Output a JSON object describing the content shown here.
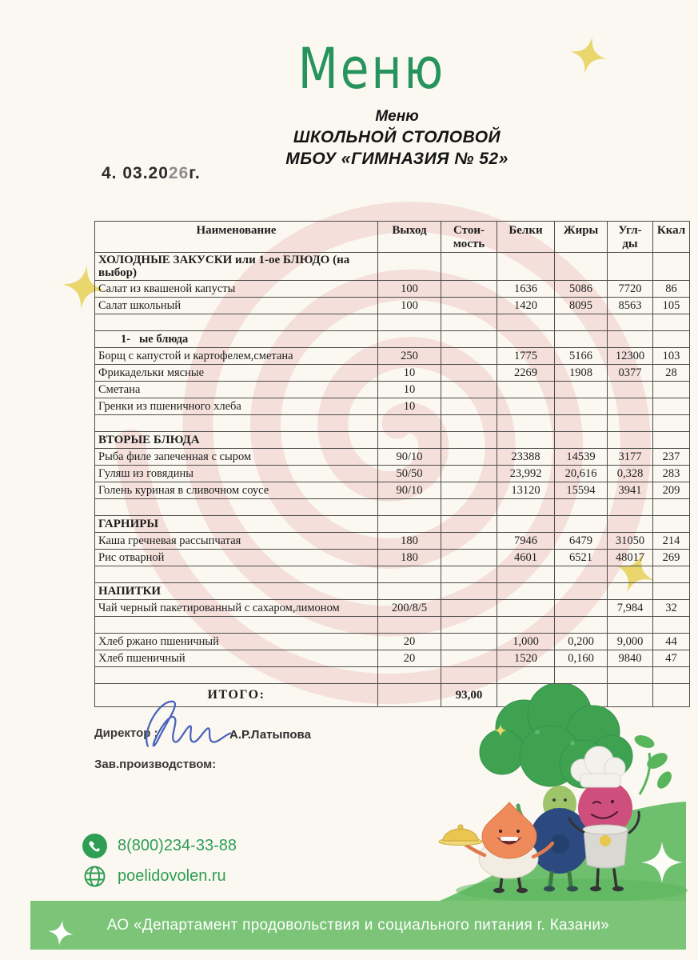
{
  "colors": {
    "page_bg": "#fbf8f1",
    "accent_green": "#27945d",
    "footer_green": "#7bc478",
    "hill_green": "#6fc06e",
    "contact_green": "#2f9e55",
    "watermark_pink": "#f3dbd7",
    "sparkle_yellow": "#e9d76d",
    "signature_blue": "#4a63bb",
    "text_dark": "#262626"
  },
  "header": {
    "script_title": "Меню",
    "subtitle_lines": [
      "Меню",
      "ШКОЛЬНОЙ СТОЛОВОЙ",
      "МБОУ «ГИМНАЗИЯ № 52»"
    ],
    "date_prefix": "4. 03.20",
    "date_year": "26",
    "date_suffix": "г."
  },
  "table": {
    "headers": [
      "Наименование",
      "Выход",
      "Стои-\nмость",
      "Белки",
      "Жиры",
      "Угл-\nды",
      "Ккал"
    ],
    "rows": [
      {
        "t": "section",
        "name": "ХОЛОДНЫЕ ЗАКУСКИ или 1-ое БЛЮДО (на выбор)"
      },
      {
        "t": "item",
        "name": "Салат из квашеной капусты",
        "out": "100",
        "pr": "1636",
        "fat": "5086",
        "carb": "7720",
        "kcal": "86"
      },
      {
        "t": "item",
        "name": "Салат школьный",
        "out": "100",
        "pr": "1420",
        "fat": "8095",
        "carb": "8563",
        "kcal": "105"
      },
      {
        "t": "empty"
      },
      {
        "t": "section-indent",
        "name": "1-   ые блюда"
      },
      {
        "t": "item",
        "name": "Борщ с капустой и картофелем,сметана",
        "out": "250",
        "pr": "1775",
        "fat": "5166",
        "carb": "12300",
        "kcal": "103"
      },
      {
        "t": "item",
        "name": "Фрикадельки мясные",
        "out": "10",
        "pr": "2269",
        "fat": "1908",
        "carb": "0377",
        "kcal": "28"
      },
      {
        "t": "item",
        "name": "Сметана",
        "out": "10"
      },
      {
        "t": "item",
        "name": "Гренки из пшеничного хлеба",
        "out": "10"
      },
      {
        "t": "empty"
      },
      {
        "t": "section",
        "name": "ВТОРЫЕ БЛЮДА"
      },
      {
        "t": "item",
        "name": "Рыба филе запеченная с сыром",
        "out": "90/10",
        "pr": "23388",
        "fat": "14539",
        "carb": "3177",
        "kcal": "237"
      },
      {
        "t": "item",
        "name": "Гуляш из говядины",
        "out": "50/50",
        "pr": "23,992",
        "fat": "20,616",
        "carb": "0,328",
        "kcal": "283"
      },
      {
        "t": "item",
        "name": "Голень куриная в сливочном соусе",
        "out": "90/10",
        "pr": "13120",
        "fat": "15594",
        "carb": "3941",
        "kcal": "209"
      },
      {
        "t": "empty"
      },
      {
        "t": "section",
        "name": "ГАРНИРЫ"
      },
      {
        "t": "item",
        "name": "Каша гречневая рассыпчатая",
        "out": "180",
        "pr": "7946",
        "fat": "6479",
        "carb": "31050",
        "kcal": "214"
      },
      {
        "t": "item",
        "name": "Рис отварной",
        "out": "180",
        "pr": "4601",
        "fat": "6521",
        "carb": "48017",
        "kcal": "269"
      },
      {
        "t": "empty"
      },
      {
        "t": "section",
        "name": "НАПИТКИ"
      },
      {
        "t": "item",
        "name": "Чай черный пакетированный с сахаром,лимоном",
        "out": "200/8/5",
        "carb": "7,984",
        "kcal": "32"
      },
      {
        "t": "empty"
      },
      {
        "t": "item",
        "name": "Хлеб ржано пшеничный",
        "out": "20",
        "pr": "1,000",
        "fat": "0,200",
        "carb": "9,000",
        "kcal": "44"
      },
      {
        "t": "item",
        "name": "Хлеб пшеничный",
        "out": "20",
        "pr": "1520",
        "fat": "0,160",
        "carb": "9840",
        "kcal": "47"
      },
      {
        "t": "empty"
      },
      {
        "t": "total",
        "name": "ИТОГО:",
        "cost": "93,00"
      }
    ]
  },
  "signature": {
    "director_label": "Директор :",
    "director_name": "А.Р.Латыпова",
    "manager_label": "Зав.производством:"
  },
  "contacts": {
    "phone": "8(800)234-33-88",
    "website": "poelidovolen.ru"
  },
  "footer": {
    "org": "АО «Департамент продовольствия и социального питания г. Казани»"
  },
  "icons": {
    "phone_icon": "telephone-receiver in solid green circle",
    "globe_icon": "outlined green globe",
    "sparkle_icon": "four-point star"
  }
}
